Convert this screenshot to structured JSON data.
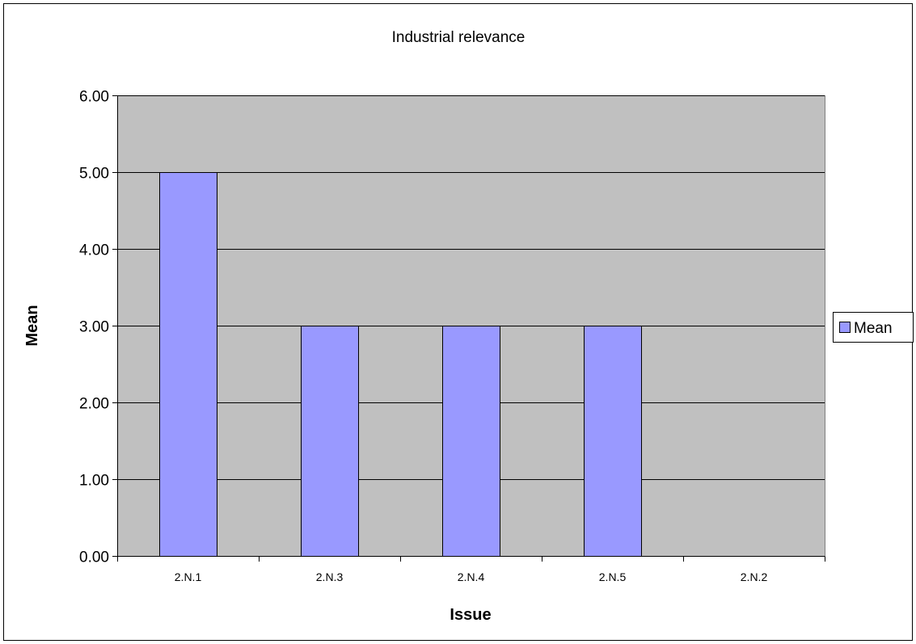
{
  "chart_data": {
    "type": "bar",
    "title": "Industrial relevance",
    "xlabel": "Issue",
    "ylabel": "Mean",
    "categories": [
      "2.N.1",
      "2.N.3",
      "2.N.4",
      "2.N.5",
      "2.N.2"
    ],
    "series": [
      {
        "name": "Mean",
        "values": [
          5,
          3,
          3,
          3,
          0
        ],
        "color": "#9999ff"
      }
    ],
    "ylim": [
      0,
      6
    ],
    "yticks": [
      0,
      1,
      2,
      3,
      4,
      5,
      6
    ],
    "ytick_labels": [
      "0.00",
      "1.00",
      "2.00",
      "3.00",
      "4.00",
      "5.00",
      "6.00"
    ],
    "grid": true,
    "legend_position": "right",
    "plot_background": "#c0c0c0"
  }
}
